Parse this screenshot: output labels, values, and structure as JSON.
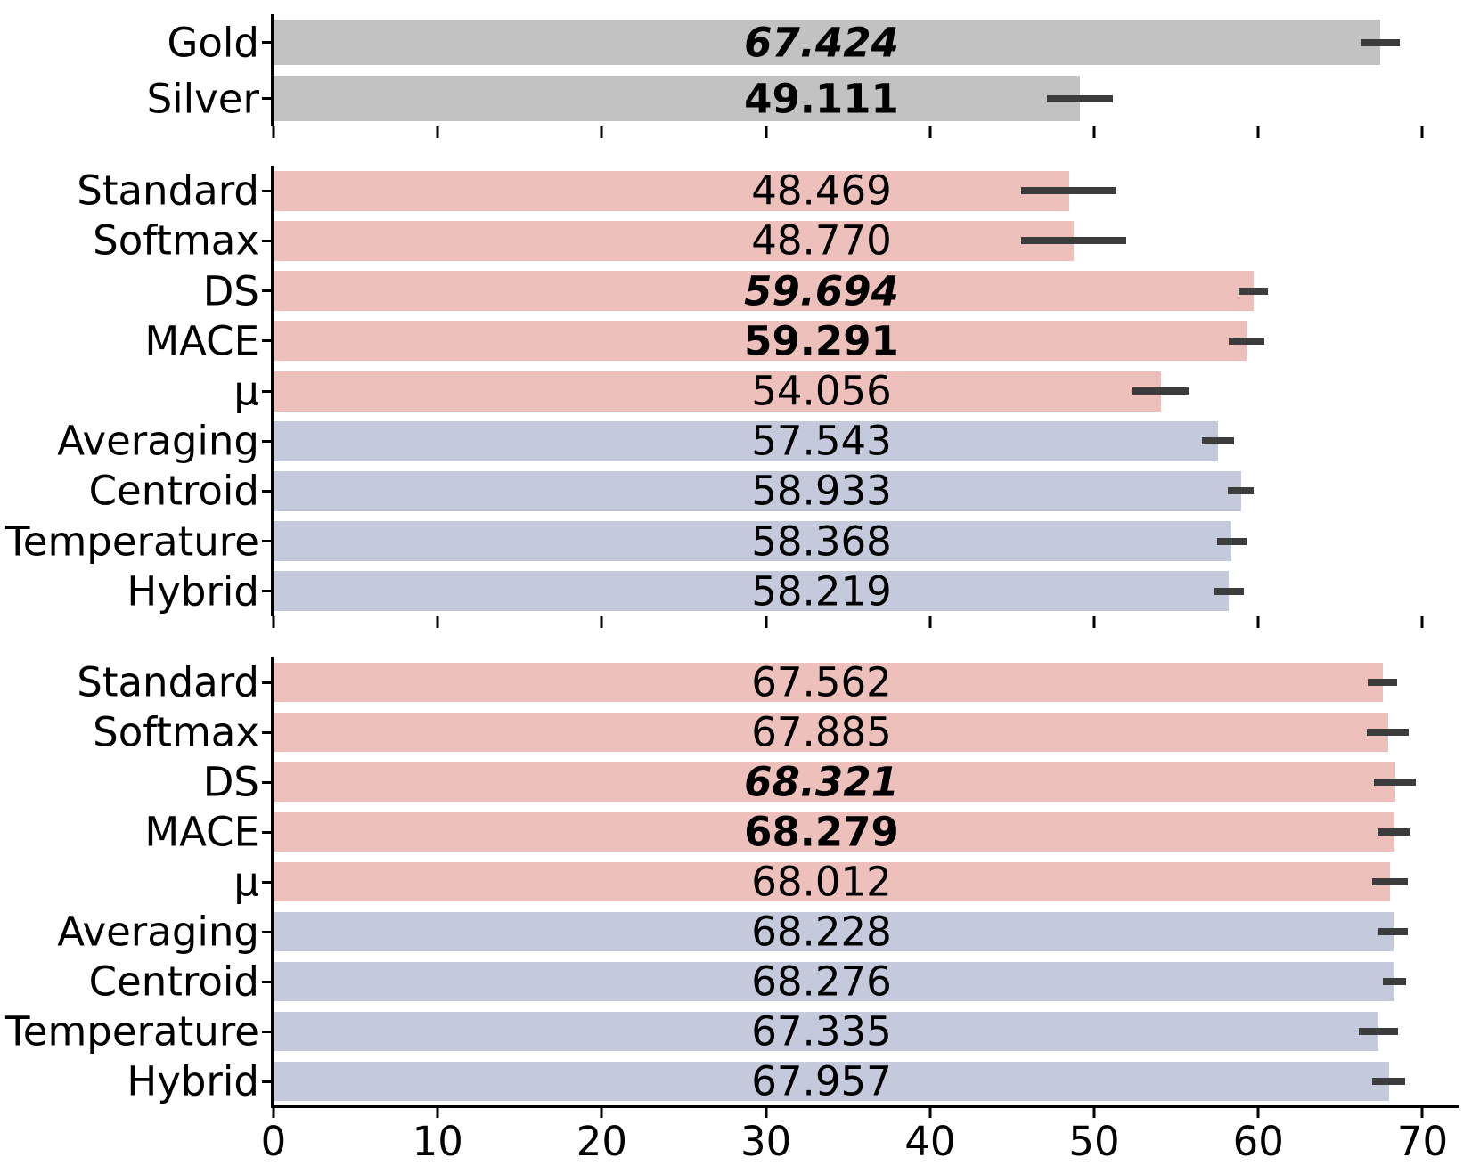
{
  "palette": {
    "gray": "#c2c2c2",
    "pink": "#eec0bb",
    "lavender": "#c5c9dc",
    "error_bar": "#3c3c3c",
    "axis": "#000000"
  },
  "axis": {
    "ticks": [
      "0",
      "10",
      "20",
      "30",
      "40",
      "50",
      "60",
      "70"
    ],
    "tick_values": [
      0,
      10,
      20,
      30,
      40,
      50,
      60,
      70
    ]
  },
  "chart_data": [
    {
      "type": "bar",
      "orientation": "horizontal",
      "xlim": [
        0,
        72.2
      ],
      "categories": [
        "Gold",
        "Silver"
      ],
      "values": [
        67.424,
        49.111
      ],
      "value_labels": [
        "67.424",
        "49.111"
      ],
      "errors": [
        1.2,
        2.0
      ],
      "bar_colors": [
        "gray",
        "gray"
      ],
      "label_styles": [
        "bold-italic",
        "bold"
      ],
      "show_x_labels": false
    },
    {
      "type": "bar",
      "orientation": "horizontal",
      "xlim": [
        0,
        72.2
      ],
      "categories": [
        "Standard",
        "Softmax",
        "DS",
        "MACE",
        "μ",
        "Averaging",
        "Centroid",
        "Temperature",
        "Hybrid"
      ],
      "values": [
        48.469,
        48.77,
        59.694,
        59.291,
        54.056,
        57.543,
        58.933,
        58.368,
        58.219
      ],
      "value_labels": [
        "48.469",
        "48.770",
        "59.694",
        "59.291",
        "54.056",
        "57.543",
        "58.933",
        "58.368",
        "58.219"
      ],
      "errors": [
        2.9,
        3.2,
        0.9,
        1.1,
        1.7,
        1.0,
        0.8,
        0.9,
        0.9
      ],
      "bar_colors": [
        "pink",
        "pink",
        "pink",
        "pink",
        "pink",
        "lavender",
        "lavender",
        "lavender",
        "lavender"
      ],
      "label_styles": [
        "normal",
        "normal",
        "bold-italic",
        "bold",
        "normal",
        "normal",
        "normal",
        "normal",
        "normal"
      ],
      "show_x_labels": false
    },
    {
      "type": "bar",
      "orientation": "horizontal",
      "xlim": [
        0,
        72.2
      ],
      "categories": [
        "Standard",
        "Softmax",
        "DS",
        "MACE",
        "μ",
        "Averaging",
        "Centroid",
        "Temperature",
        "Hybrid"
      ],
      "values": [
        67.562,
        67.885,
        68.321,
        68.279,
        68.012,
        68.228,
        68.276,
        67.335,
        67.957
      ],
      "value_labels": [
        "67.562",
        "67.885",
        "68.321",
        "68.279",
        "68.012",
        "68.228",
        "68.276",
        "67.335",
        "67.957"
      ],
      "errors": [
        0.9,
        1.3,
        1.3,
        1.0,
        1.1,
        0.9,
        0.7,
        1.2,
        1.0
      ],
      "bar_colors": [
        "pink",
        "pink",
        "pink",
        "pink",
        "pink",
        "lavender",
        "lavender",
        "lavender",
        "lavender"
      ],
      "label_styles": [
        "normal",
        "normal",
        "bold-italic",
        "bold",
        "normal",
        "normal",
        "normal",
        "normal",
        "normal"
      ],
      "show_x_labels": true
    }
  ]
}
